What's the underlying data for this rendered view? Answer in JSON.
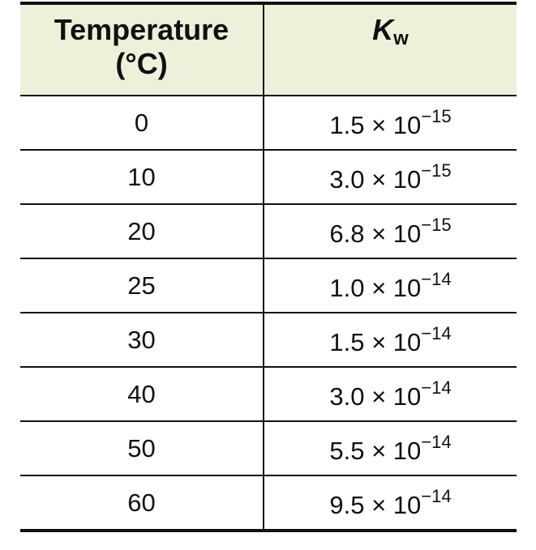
{
  "table": {
    "header": {
      "temperature": [
        "Temperature",
        "(°C)"
      ],
      "kw": {
        "symbol": "K",
        "subscript": "w"
      }
    },
    "rows": [
      {
        "temperature": "0",
        "kw": {
          "coefficient": "1.5 × 10",
          "exponent": "−15"
        }
      },
      {
        "temperature": "10",
        "kw": {
          "coefficient": "3.0 × 10",
          "exponent": "−15"
        }
      },
      {
        "temperature": "20",
        "kw": {
          "coefficient": "6.8 × 10",
          "exponent": "−15"
        }
      },
      {
        "temperature": "25",
        "kw": {
          "coefficient": "1.0 × 10",
          "exponent": "−14"
        }
      },
      {
        "temperature": "30",
        "kw": {
          "coefficient": "1.5 × 10",
          "exponent": "−14"
        }
      },
      {
        "temperature": "40",
        "kw": {
          "coefficient": "3.0 × 10",
          "exponent": "−14"
        }
      },
      {
        "temperature": "50",
        "kw": {
          "coefficient": "5.5 × 10",
          "exponent": "−14"
        }
      },
      {
        "temperature": "60",
        "kw": {
          "coefficient": "9.5 × 10",
          "exponent": "−14"
        }
      }
    ]
  }
}
